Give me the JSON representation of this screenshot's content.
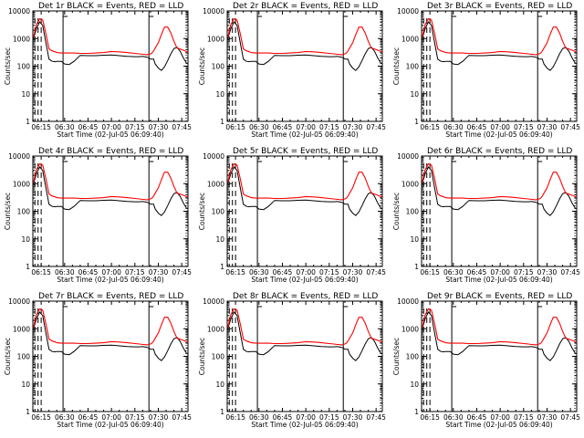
{
  "colors": {
    "background": "#ffffff",
    "axis": "#000000",
    "events": "#000000",
    "lld": "#ff0000"
  },
  "chart_data": {
    "type": "line",
    "layout": "3x3 grid of panels",
    "xlabel": "Start Time (02-Jul-05 06:09:40)",
    "ylabel": "Counts/sec",
    "yscale": "log",
    "ylim": [
      1,
      10000
    ],
    "ytick_labels": [
      "1",
      "10",
      "100",
      "1000",
      "10000"
    ],
    "xlim": [
      "06:09:40",
      "07:49:00"
    ],
    "xtick_labels": [
      "06:15",
      "06:30",
      "06:45",
      "07:00",
      "07:15",
      "07:30",
      "07:45"
    ],
    "x_minutes_after_06_00": [
      10,
      12,
      14,
      16,
      18,
      20,
      22,
      24,
      25,
      28,
      30,
      33,
      36,
      40,
      45,
      50,
      55,
      60,
      65,
      70,
      75,
      78,
      80,
      81,
      82,
      83,
      84,
      85,
      86,
      87,
      88,
      90,
      92,
      94,
      96,
      98,
      100,
      102,
      104,
      106,
      108,
      109
    ],
    "vertical_lines": {
      "solid": [
        "06:29",
        "07:24"
      ],
      "dashed": [
        "06:11",
        "06:13",
        "06:15"
      ],
      "dotted_right_edge": true
    },
    "panels": [
      {
        "title": "Det 1r BLACK = Events, RED = LLD",
        "series": [
          {
            "name": "Events",
            "color": "#000000",
            "values": [
              1000,
              2300,
              4000,
              3000,
              700,
              180,
              150,
              145,
              150,
              150,
              120,
              115,
              150,
              245,
              240,
              240,
              250,
              255,
              240,
              225,
              220,
              220,
              225,
              220,
              215,
              210,
              200,
              180,
              180,
              180,
              120,
              85,
              70,
              95,
              160,
              280,
              430,
              480,
              350,
              200,
              130,
              125
            ]
          },
          {
            "name": "LLD",
            "color": "#ff0000",
            "values": [
              1100,
              3200,
              5200,
              4700,
              1500,
              420,
              360,
              330,
              310,
              300,
              300,
              300,
              300,
              290,
              290,
              300,
              310,
              340,
              330,
              310,
              290,
              280,
              270,
              270,
              260,
              260,
              270,
              280,
              300,
              350,
              450,
              700,
              1400,
              2600,
              2600,
              1600,
              800,
              450,
              420,
              380,
              340,
              330
            ]
          }
        ]
      },
      {
        "title": "Det 2r BLACK = Events, RED = LLD",
        "series": [
          {
            "name": "Events",
            "color": "#000000",
            "values": [
              1000,
              2300,
              4000,
              3000,
              700,
              180,
              150,
              145,
              150,
              150,
              120,
              115,
              150,
              245,
              240,
              240,
              250,
              255,
              240,
              225,
              220,
              220,
              225,
              220,
              215,
              210,
              200,
              180,
              180,
              180,
              120,
              85,
              70,
              95,
              160,
              280,
              430,
              480,
              350,
              200,
              130,
              125
            ]
          },
          {
            "name": "LLD",
            "color": "#ff0000",
            "values": [
              1100,
              3200,
              5200,
              4700,
              1500,
              420,
              360,
              330,
              310,
              300,
              300,
              300,
              300,
              290,
              290,
              300,
              310,
              340,
              330,
              310,
              290,
              280,
              270,
              270,
              260,
              260,
              270,
              280,
              300,
              350,
              450,
              700,
              1400,
              2600,
              2600,
              1600,
              800,
              450,
              420,
              380,
              340,
              330
            ]
          }
        ]
      },
      {
        "title": "Det 3r BLACK = Events, RED = LLD",
        "series": [
          {
            "name": "Events",
            "color": "#000000",
            "values": [
              1000,
              2300,
              4000,
              3000,
              700,
              180,
              150,
              145,
              150,
              150,
              120,
              115,
              150,
              245,
              240,
              240,
              250,
              255,
              240,
              225,
              220,
              220,
              225,
              220,
              215,
              210,
              200,
              180,
              180,
              180,
              120,
              85,
              70,
              95,
              160,
              280,
              430,
              480,
              350,
              200,
              130,
              125
            ]
          },
          {
            "name": "LLD",
            "color": "#ff0000",
            "values": [
              1100,
              3200,
              5200,
              4700,
              1500,
              420,
              360,
              330,
              310,
              300,
              300,
              300,
              300,
              290,
              290,
              300,
              310,
              340,
              330,
              310,
              290,
              280,
              270,
              270,
              260,
              260,
              270,
              280,
              300,
              350,
              450,
              700,
              1400,
              2600,
              2600,
              1600,
              800,
              450,
              420,
              380,
              340,
              330
            ]
          }
        ]
      },
      {
        "title": "Det 4r BLACK = Events, RED = LLD",
        "series": [
          {
            "name": "Events",
            "color": "#000000",
            "values": [
              1000,
              2300,
              4000,
              3000,
              700,
              180,
              150,
              145,
              150,
              150,
              120,
              115,
              150,
              245,
              240,
              240,
              250,
              255,
              240,
              225,
              220,
              220,
              225,
              220,
              215,
              210,
              200,
              180,
              180,
              180,
              120,
              85,
              70,
              95,
              160,
              280,
              430,
              480,
              350,
              200,
              130,
              125
            ]
          },
          {
            "name": "LLD",
            "color": "#ff0000",
            "values": [
              1100,
              3200,
              5200,
              4700,
              1500,
              420,
              360,
              330,
              310,
              300,
              300,
              300,
              300,
              290,
              290,
              300,
              310,
              340,
              330,
              310,
              290,
              280,
              270,
              270,
              260,
              260,
              270,
              280,
              300,
              350,
              450,
              700,
              1400,
              2600,
              2600,
              1600,
              800,
              450,
              420,
              380,
              340,
              330
            ]
          }
        ]
      },
      {
        "title": "Det 5r BLACK = Events, RED = LLD",
        "series": [
          {
            "name": "Events",
            "color": "#000000",
            "values": [
              1000,
              2300,
              4000,
              3000,
              700,
              180,
              150,
              145,
              150,
              150,
              120,
              115,
              150,
              245,
              240,
              240,
              250,
              255,
              240,
              225,
              220,
              220,
              225,
              220,
              215,
              210,
              200,
              180,
              180,
              180,
              120,
              85,
              70,
              95,
              160,
              280,
              430,
              480,
              350,
              200,
              130,
              125
            ]
          },
          {
            "name": "LLD",
            "color": "#ff0000",
            "values": [
              1100,
              3200,
              5200,
              4700,
              1500,
              420,
              360,
              330,
              310,
              300,
              300,
              300,
              300,
              290,
              290,
              300,
              310,
              340,
              330,
              310,
              290,
              280,
              270,
              270,
              260,
              260,
              270,
              280,
              300,
              350,
              450,
              700,
              1400,
              2600,
              2600,
              1600,
              800,
              450,
              420,
              380,
              340,
              330
            ]
          }
        ]
      },
      {
        "title": "Det 6r BLACK = Events, RED = LLD",
        "series": [
          {
            "name": "Events",
            "color": "#000000",
            "values": [
              1000,
              2300,
              4000,
              3000,
              700,
              180,
              150,
              145,
              150,
              150,
              120,
              115,
              150,
              245,
              240,
              240,
              250,
              255,
              240,
              225,
              220,
              220,
              225,
              220,
              215,
              210,
              200,
              180,
              180,
              180,
              120,
              85,
              70,
              95,
              160,
              280,
              430,
              480,
              350,
              200,
              130,
              125
            ]
          },
          {
            "name": "LLD",
            "color": "#ff0000",
            "values": [
              1100,
              3200,
              5200,
              4700,
              1500,
              420,
              360,
              330,
              310,
              300,
              300,
              300,
              300,
              290,
              290,
              300,
              310,
              340,
              330,
              310,
              290,
              280,
              270,
              270,
              260,
              260,
              270,
              280,
              300,
              350,
              450,
              700,
              1400,
              2600,
              2600,
              1600,
              800,
              450,
              420,
              380,
              340,
              330
            ]
          }
        ]
      },
      {
        "title": "Det 7r BLACK = Events, RED = LLD",
        "series": [
          {
            "name": "Events",
            "color": "#000000",
            "values": [
              1000,
              2300,
              4000,
              3000,
              700,
              180,
              150,
              145,
              150,
              150,
              120,
              115,
              150,
              245,
              240,
              240,
              250,
              255,
              240,
              225,
              220,
              220,
              225,
              220,
              215,
              210,
              200,
              180,
              180,
              180,
              120,
              85,
              70,
              95,
              160,
              280,
              430,
              480,
              350,
              200,
              130,
              125
            ]
          },
          {
            "name": "LLD",
            "color": "#ff0000",
            "values": [
              1100,
              3200,
              5200,
              4700,
              1500,
              420,
              360,
              330,
              310,
              300,
              300,
              300,
              300,
              290,
              290,
              300,
              310,
              340,
              330,
              310,
              290,
              280,
              270,
              270,
              260,
              260,
              270,
              280,
              300,
              350,
              450,
              700,
              1400,
              2600,
              2600,
              1600,
              800,
              450,
              420,
              380,
              340,
              330
            ]
          }
        ]
      },
      {
        "title": "Det 8r BLACK = Events, RED = LLD",
        "series": [
          {
            "name": "Events",
            "color": "#000000",
            "values": [
              1000,
              2300,
              4000,
              3000,
              700,
              180,
              150,
              145,
              150,
              150,
              120,
              115,
              150,
              245,
              240,
              240,
              250,
              255,
              240,
              225,
              220,
              220,
              225,
              220,
              215,
              210,
              200,
              180,
              180,
              180,
              120,
              85,
              70,
              95,
              160,
              280,
              430,
              480,
              350,
              200,
              130,
              125
            ]
          },
          {
            "name": "LLD",
            "color": "#ff0000",
            "values": [
              1100,
              3200,
              5200,
              4700,
              1500,
              420,
              360,
              330,
              310,
              300,
              300,
              300,
              300,
              290,
              290,
              300,
              310,
              340,
              330,
              310,
              290,
              280,
              270,
              270,
              260,
              260,
              270,
              280,
              300,
              350,
              450,
              700,
              1400,
              2600,
              2600,
              1600,
              800,
              450,
              420,
              380,
              340,
              330
            ]
          }
        ]
      },
      {
        "title": "Det 9r BLACK = Events, RED = LLD",
        "series": [
          {
            "name": "Events",
            "color": "#000000",
            "values": [
              1000,
              2300,
              4000,
              3000,
              700,
              180,
              150,
              145,
              150,
              150,
              120,
              115,
              150,
              245,
              240,
              240,
              250,
              255,
              240,
              225,
              220,
              220,
              225,
              220,
              215,
              210,
              200,
              180,
              180,
              180,
              120,
              85,
              70,
              95,
              160,
              280,
              430,
              480,
              350,
              200,
              130,
              125
            ]
          },
          {
            "name": "LLD",
            "color": "#ff0000",
            "values": [
              1100,
              3200,
              5200,
              4700,
              1500,
              420,
              360,
              330,
              310,
              300,
              300,
              300,
              300,
              290,
              290,
              300,
              310,
              340,
              330,
              310,
              290,
              280,
              270,
              270,
              260,
              260,
              270,
              280,
              300,
              350,
              450,
              700,
              1400,
              2600,
              2600,
              1600,
              800,
              450,
              420,
              380,
              340,
              330
            ]
          }
        ]
      }
    ]
  }
}
